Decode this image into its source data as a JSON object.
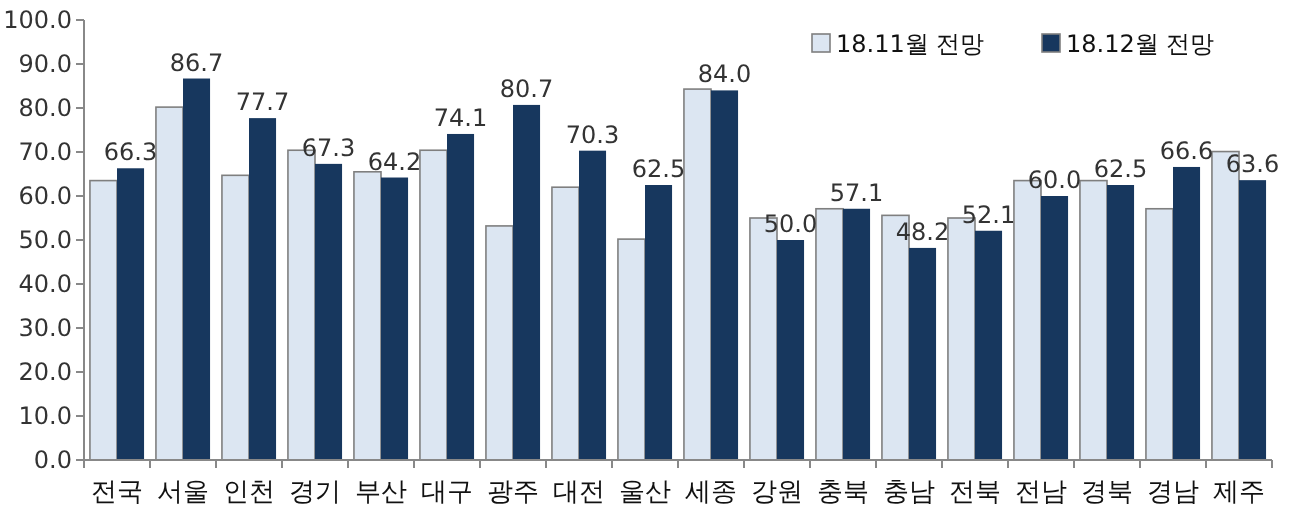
{
  "chart_data": {
    "type": "bar",
    "categories": [
      "전국",
      "서울",
      "인천",
      "경기",
      "부산",
      "대구",
      "광주",
      "대전",
      "울산",
      "세종",
      "강원",
      "충북",
      "충남",
      "전북",
      "전남",
      "경북",
      "경남",
      "제주"
    ],
    "series": [
      {
        "name": "18.11월 전망",
        "color": "#dce6f2",
        "values": [
          63.5,
          80.2,
          64.7,
          70.4,
          65.5,
          70.4,
          53.2,
          62.0,
          50.2,
          84.3,
          55.0,
          57.1,
          55.6,
          55.0,
          63.5,
          63.5,
          57.1,
          70.1
        ]
      },
      {
        "name": "18.12월 전망",
        "color": "#17375e",
        "values": [
          66.3,
          86.7,
          77.7,
          67.3,
          64.2,
          74.1,
          80.7,
          70.3,
          62.5,
          84.0,
          50.0,
          57.1,
          48.2,
          52.1,
          60.0,
          62.5,
          66.6,
          63.6
        ],
        "value_labels": [
          "66.3",
          "86.7",
          "77.7",
          "67.3",
          "64.2",
          "74.1",
          "80.7",
          "70.3",
          "62.5",
          "84.0",
          "50.0",
          "57.1",
          "48.2",
          "52.1",
          "60.0",
          "62.5",
          "66.6",
          "63.6"
        ]
      }
    ],
    "ylim": [
      0,
      100
    ],
    "yticks": [
      {
        "value": 0,
        "label": "0.0"
      },
      {
        "value": 10,
        "label": "10.0"
      },
      {
        "value": 20,
        "label": "20.0"
      },
      {
        "value": 30,
        "label": "30.0"
      },
      {
        "value": 40,
        "label": "40.0"
      },
      {
        "value": 50,
        "label": "50.0"
      },
      {
        "value": 60,
        "label": "60.0"
      },
      {
        "value": 70,
        "label": "70.0"
      },
      {
        "value": 80,
        "label": "80.0"
      },
      {
        "value": 90,
        "label": "90.0"
      },
      {
        "value": 100,
        "label": "100.0"
      }
    ],
    "grid": false,
    "legend": "top right"
  }
}
